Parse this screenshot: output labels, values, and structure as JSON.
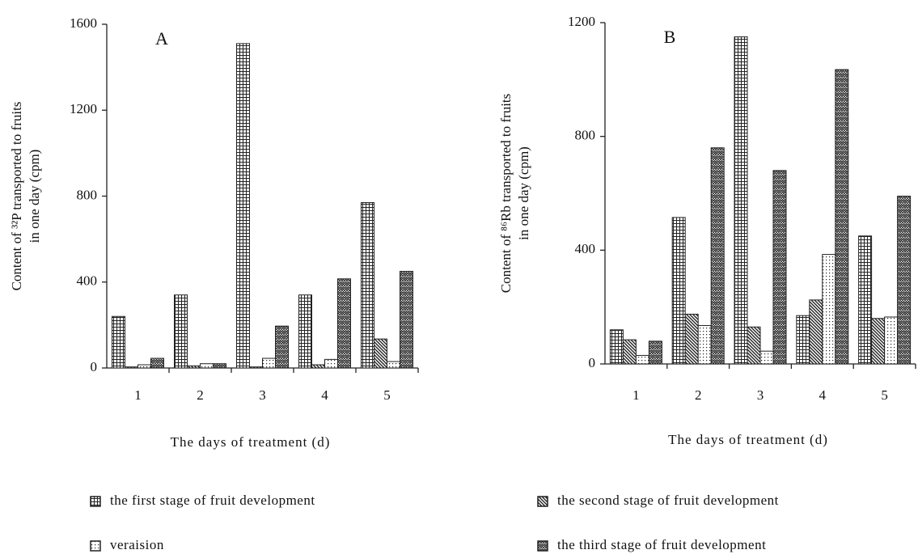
{
  "chart_data": [
    {
      "type": "bar",
      "annotation": "A",
      "ylabel": [
        "Content of ³²P transported to fruits",
        "in one day (cpm)"
      ],
      "xlabel": "The days of treatment (d)",
      "categories": [
        "1",
        "2",
        "3",
        "4",
        "5"
      ],
      "ylim": [
        0,
        1600
      ],
      "yticks": [
        0,
        400,
        800,
        1200,
        1600
      ],
      "series": [
        {
          "name": "the first stage of fruit development",
          "color": "#222",
          "pattern": "grid",
          "values": [
            240,
            340,
            1510,
            340,
            770
          ]
        },
        {
          "name": "the second stage of fruit development",
          "color": "#222",
          "pattern": "hatch",
          "values": [
            5,
            10,
            5,
            15,
            135
          ]
        },
        {
          "name": "veraision",
          "color": "#222",
          "pattern": "dots",
          "values": [
            15,
            20,
            45,
            40,
            30
          ]
        },
        {
          "name": "the third stage of fruit development",
          "color": "#222",
          "pattern": "zigzag",
          "values": [
            45,
            20,
            195,
            415,
            450
          ]
        }
      ]
    },
    {
      "type": "bar",
      "annotation": "B",
      "ylabel": [
        "Content of ⁸⁶Rb transported to fruits",
        "in one day (cpm)"
      ],
      "xlabel": "The days of treatment (d)",
      "categories": [
        "1",
        "2",
        "3",
        "4",
        "5"
      ],
      "ylim": [
        0,
        1200
      ],
      "yticks": [
        0,
        400,
        800,
        1200
      ],
      "series": [
        {
          "color": "#222",
          "pattern": "grid",
          "values": [
            120,
            515,
            1150,
            170,
            450
          ]
        },
        {
          "color": "#222",
          "pattern": "hatch",
          "values": [
            85,
            175,
            130,
            225,
            160
          ]
        },
        {
          "color": "#222",
          "pattern": "dots",
          "values": [
            30,
            135,
            45,
            385,
            165
          ]
        },
        {
          "color": "#222",
          "pattern": "zigzag",
          "values": [
            80,
            760,
            680,
            1035,
            590
          ]
        }
      ]
    }
  ]
}
